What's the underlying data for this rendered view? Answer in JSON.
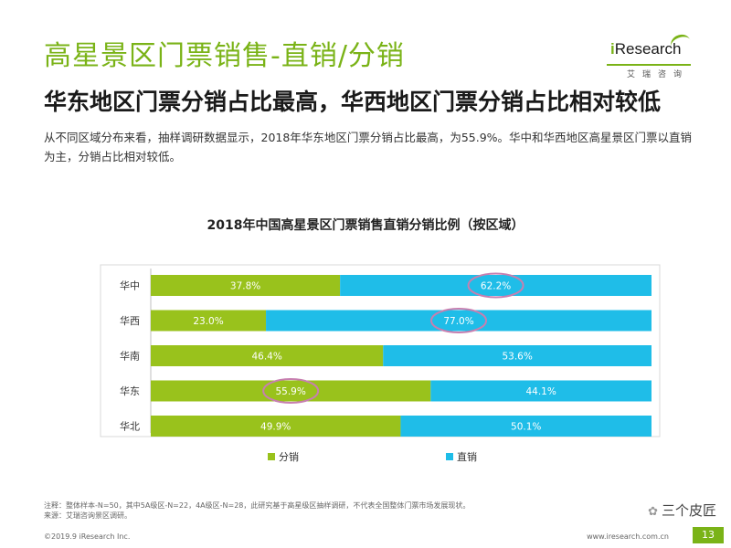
{
  "page": {
    "title": "高星景区门票销售-直销/分销",
    "subtitle": "华东地区门票分销占比最高，华西地区门票分销占比相对较低",
    "description": "从不同区域分布来看，抽样调研数据显示，2018年华东地区门票分销占比最高，为55.9%。华中和华西地区高星景区门票以直销为主，分销占比相对较低。",
    "footnote_line1": "注释：整体样本-N=50，其中5A级区-N=22，4A级区-N=28，此研究基于高星级区抽样调研，不代表全国整体门票市场发展现状。",
    "footnote_line2": "来源：艾瑞咨询景区调研。",
    "copyright": "©2019.9 iResearch Inc.",
    "website": "www.iresearch.com.cn",
    "page_number": "13",
    "watermark": "三个皮匠"
  },
  "logo": {
    "i": "i",
    "text": "Research",
    "sub": "艾瑞咨询"
  },
  "colors": {
    "accent": "#7ab317",
    "fenxiao": "#99c21c",
    "zhixiao": "#1fbde8",
    "circle": "#c77fb0"
  },
  "chart_data": {
    "type": "bar",
    "orientation": "horizontal",
    "stacked": true,
    "title": "2018年中国高星景区门票销售直销分销比例（按区域）",
    "categories": [
      "华中",
      "华西",
      "华南",
      "华东",
      "华北"
    ],
    "series": [
      {
        "name": "分销",
        "values": [
          37.8,
          23.0,
          46.4,
          55.9,
          49.9
        ],
        "labels": [
          "37.8%",
          "23.0%",
          "46.4%",
          "55.9%",
          "49.9%"
        ]
      },
      {
        "name": "直销",
        "values": [
          62.2,
          77.0,
          53.6,
          44.1,
          50.1
        ],
        "labels": [
          "62.2%",
          "77.0%",
          "53.6%",
          "44.1%",
          "50.1%"
        ]
      }
    ],
    "highlighted": [
      {
        "series": "直销",
        "category": "华中"
      },
      {
        "series": "直销",
        "category": "华西"
      },
      {
        "series": "分销",
        "category": "华东"
      }
    ],
    "xlim": [
      0,
      100
    ],
    "legend_position": "bottom"
  }
}
